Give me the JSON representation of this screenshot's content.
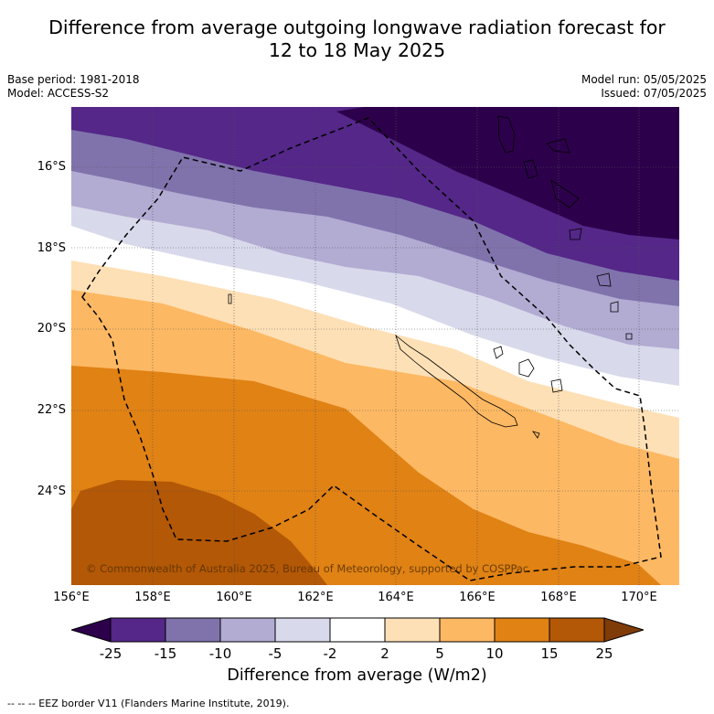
{
  "title_line1": "Difference from average outgoing longwave radiation forecast for",
  "title_line2": "12 to 18 May 2025",
  "base_period": "Base period: 1981-2018",
  "model": "Model: ACCESS-S2",
  "model_run": "Model run: 05/05/2025",
  "issued": "Issued: 07/05/2025",
  "copyright": "© Commonwealth of Australia 2025, Bureau of Meteorology, supported by COSPPac",
  "lat_labels": [
    "16°S",
    "18°S",
    "20°S",
    "22°S",
    "24°S"
  ],
  "lon_labels": [
    "156°E",
    "158°E",
    "160°E",
    "162°E",
    "164°E",
    "166°E",
    "168°E",
    "170°E"
  ],
  "colorbar": {
    "ticks": [
      "-25",
      "-15",
      "-10",
      "-5",
      "-2",
      "2",
      "5",
      "10",
      "15",
      "25"
    ],
    "colors": [
      "#2d004b",
      "#542788",
      "#8073ac",
      "#b2abd2",
      "#d8daeb",
      "#ffffff",
      "#fee0b6",
      "#fdb863",
      "#e08214",
      "#b35806",
      "#7f3b08"
    ],
    "label": "Difference from average (W/m2)"
  },
  "footer": "--  --  -- EEZ border V11 (Flanders Marine Institute, 2019)."
}
